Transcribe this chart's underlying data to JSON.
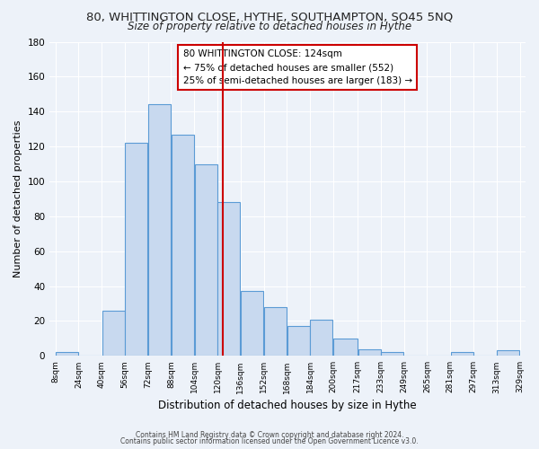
{
  "title": "80, WHITTINGTON CLOSE, HYTHE, SOUTHAMPTON, SO45 5NQ",
  "subtitle": "Size of property relative to detached houses in Hythe",
  "xlabel": "Distribution of detached houses by size in Hythe",
  "ylabel": "Number of detached properties",
  "bar_color": "#c8d9ef",
  "bar_edge_color": "#5b9bd5",
  "bin_edges": [
    8,
    24,
    40,
    56,
    72,
    88,
    104,
    120,
    136,
    152,
    168,
    184,
    200,
    217,
    233,
    249,
    265,
    281,
    297,
    313,
    329
  ],
  "bar_heights": [
    2,
    0,
    26,
    122,
    144,
    127,
    110,
    88,
    37,
    28,
    17,
    21,
    10,
    4,
    2,
    0,
    0,
    2,
    0,
    3
  ],
  "tick_labels": [
    "8sqm",
    "24sqm",
    "40sqm",
    "56sqm",
    "72sqm",
    "88sqm",
    "104sqm",
    "120sqm",
    "136sqm",
    "152sqm",
    "168sqm",
    "184sqm",
    "200sqm",
    "217sqm",
    "233sqm",
    "249sqm",
    "265sqm",
    "281sqm",
    "297sqm",
    "313sqm",
    "329sqm"
  ],
  "vline_x": 124,
  "vline_color": "#cc0000",
  "annotation_title": "80 WHITTINGTON CLOSE: 124sqm",
  "annotation_line1": "← 75% of detached houses are smaller (552)",
  "annotation_line2": "25% of semi-detached houses are larger (183) →",
  "annotation_box_color": "#ffffff",
  "annotation_box_edge_color": "#cc0000",
  "footer1": "Contains HM Land Registry data © Crown copyright and database right 2024.",
  "footer2": "Contains public sector information licensed under the Open Government Licence v3.0.",
  "ylim": [
    0,
    180
  ],
  "background_color": "#edf2f9",
  "grid_color": "#ffffff",
  "yticks": [
    0,
    20,
    40,
    60,
    80,
    100,
    120,
    140,
    160,
    180
  ]
}
